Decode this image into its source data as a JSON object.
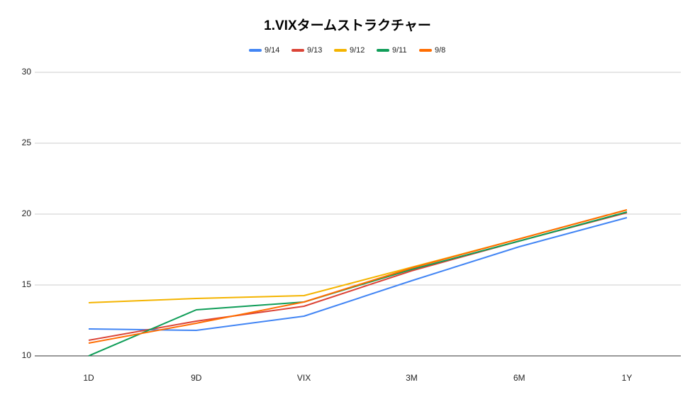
{
  "chart_data": {
    "type": "line",
    "title": "1.VIXタームストラクチャー",
    "categories": [
      "1D",
      "9D",
      "VIX",
      "3M",
      "6M",
      "1Y"
    ],
    "series": [
      {
        "name": "9/14",
        "color": "#4285f4",
        "values": [
          11.9,
          11.8,
          12.8,
          15.3,
          17.7,
          19.75
        ]
      },
      {
        "name": "9/13",
        "color": "#db4437",
        "values": [
          11.1,
          12.45,
          13.5,
          16.0,
          18.1,
          20.1
        ]
      },
      {
        "name": "9/12",
        "color": "#f4b400",
        "values": [
          13.75,
          14.05,
          14.25,
          16.25,
          18.25,
          20.3
        ]
      },
      {
        "name": "9/11",
        "color": "#0f9d58",
        "values": [
          10.0,
          13.25,
          13.8,
          16.1,
          18.1,
          20.15
        ]
      },
      {
        "name": "9/8",
        "color": "#ff6d01",
        "values": [
          10.9,
          12.3,
          13.8,
          16.2,
          18.25,
          20.3
        ]
      }
    ],
    "ylim": [
      10,
      30
    ],
    "yticks": [
      10,
      15,
      20,
      25,
      30
    ],
    "grid": true
  }
}
